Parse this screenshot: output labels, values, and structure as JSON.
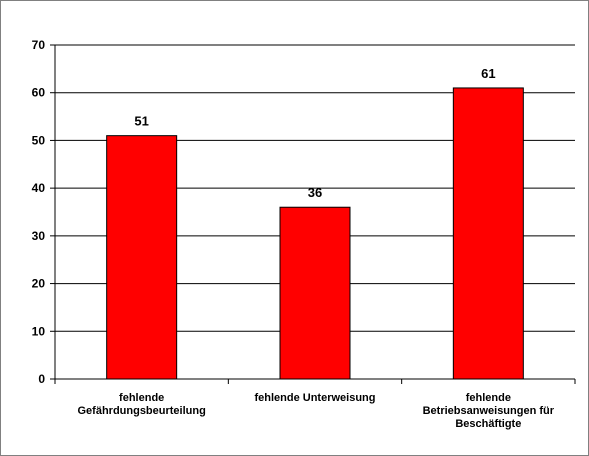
{
  "chart_data": {
    "type": "bar",
    "categories": [
      "fehlende Gefährdungsbeurteilung",
      "fehlende Unterweisung",
      "fehlende Betriebsanweisungen für Beschäftigte"
    ],
    "category_lines": [
      [
        "fehlende",
        "Gefährdungsbeurteilung"
      ],
      [
        "fehlende Unterweisung"
      ],
      [
        "fehlende",
        "Betriebsanweisungen für",
        "Beschäftigte"
      ]
    ],
    "values": [
      51,
      36,
      61
    ],
    "data_labels": [
      "51",
      "36",
      "61"
    ],
    "title": "",
    "xlabel": "",
    "ylabel": "",
    "ylim": [
      0,
      70
    ],
    "yticks": [
      0,
      10,
      20,
      30,
      40,
      50,
      60,
      70
    ],
    "ytick_labels": [
      "0",
      "10",
      "20",
      "30",
      "40",
      "50",
      "60",
      "70"
    ],
    "grid": true,
    "legend": "none",
    "bar_color": "#ff0000"
  }
}
